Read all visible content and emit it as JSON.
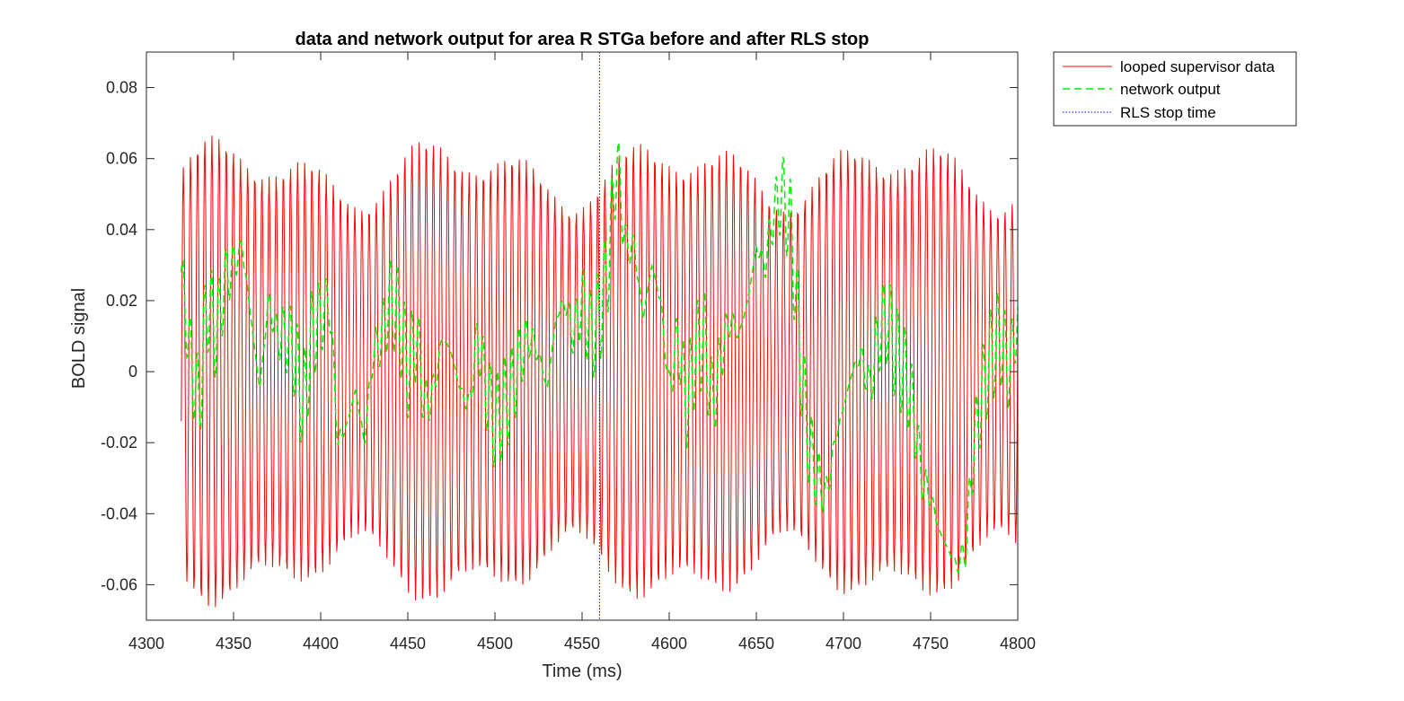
{
  "chart_data": {
    "type": "line",
    "title": "data and network output for area R STGa before and after RLS stop",
    "xlabel": "Time (ms)",
    "ylabel": "BOLD signal",
    "xlim": [
      4300,
      4800
    ],
    "ylim": [
      -0.07,
      0.09
    ],
    "xticks": [
      "4300",
      "4350",
      "4400",
      "4450",
      "4500",
      "4550",
      "4600",
      "4650",
      "4700",
      "4750",
      "4800"
    ],
    "yticks": [
      "-0.06",
      "-0.04",
      "-0.02",
      "0",
      "0.02",
      "0.04",
      "0.06",
      "0.08"
    ],
    "grid": false,
    "legend_position": "top-right outside",
    "series": [
      {
        "name": "looped supervisor data",
        "color": "#ff0000",
        "style": "solid",
        "x_start": 4320,
        "x_end": 4800,
        "samples": 1200,
        "model": "oscillation",
        "period": 4.1,
        "envelope_min": 0.045,
        "envelope_max": 0.068
      },
      {
        "name": "network output",
        "color": "#00ee00",
        "style": "dashed",
        "points": [
          [
            4320,
            0.028
          ],
          [
            4325,
            0.005
          ],
          [
            4330,
            -0.01
          ],
          [
            4335,
            0.02
          ],
          [
            4340,
            0.01
          ],
          [
            4345,
            0.025
          ],
          [
            4350,
            0.03
          ],
          [
            4355,
            0.035
          ],
          [
            4360,
            0.015
          ],
          [
            4365,
            -0.005
          ],
          [
            4370,
            0.02
          ],
          [
            4375,
            0.01
          ],
          [
            4380,
            0.01
          ],
          [
            4385,
            0.005
          ],
          [
            4390,
            -0.01
          ],
          [
            4395,
            0.01
          ],
          [
            4400,
            0.015
          ],
          [
            4405,
            0.02
          ],
          [
            4410,
            -0.02
          ],
          [
            4415,
            -0.015
          ],
          [
            4420,
            -0.005
          ],
          [
            4425,
            -0.02
          ],
          [
            4430,
            0.005
          ],
          [
            4435,
            0.01
          ],
          [
            4440,
            0.02
          ],
          [
            4445,
            0.015
          ],
          [
            4450,
            0.0
          ],
          [
            4455,
            0.01
          ],
          [
            4460,
            -0.01
          ],
          [
            4465,
            -0.005
          ],
          [
            4470,
            0.01
          ],
          [
            4475,
            0.005
          ],
          [
            4480,
            -0.005
          ],
          [
            4485,
            -0.01
          ],
          [
            4490,
            0.01
          ],
          [
            4495,
            -0.005
          ],
          [
            4500,
            -0.015
          ],
          [
            4505,
            -0.01
          ],
          [
            4510,
            -0.005
          ],
          [
            4515,
            0.005
          ],
          [
            4520,
            0.01
          ],
          [
            4525,
            0.005
          ],
          [
            4530,
            -0.005
          ],
          [
            4535,
            0.015
          ],
          [
            4540,
            0.02
          ],
          [
            4545,
            0.01
          ],
          [
            4550,
            0.02
          ],
          [
            4555,
            0.01
          ],
          [
            4560,
            0.015
          ],
          [
            4565,
            0.03
          ],
          [
            4570,
            0.06
          ],
          [
            4575,
            0.035
          ],
          [
            4580,
            0.035
          ],
          [
            4585,
            0.015
          ],
          [
            4590,
            0.03
          ],
          [
            4595,
            0.02
          ],
          [
            4600,
            -0.005
          ],
          [
            4605,
            0.01
          ],
          [
            4610,
            -0.01
          ],
          [
            4615,
            0.005
          ],
          [
            4620,
            0.01
          ],
          [
            4625,
            -0.01
          ],
          [
            4630,
            0.005
          ],
          [
            4635,
            0.015
          ],
          [
            4640,
            0.01
          ],
          [
            4645,
            0.02
          ],
          [
            4650,
            0.035
          ],
          [
            4655,
            0.03
          ],
          [
            4660,
            0.045
          ],
          [
            4665,
            0.05
          ],
          [
            4670,
            0.04
          ],
          [
            4675,
            0.005
          ],
          [
            4680,
            -0.02
          ],
          [
            4685,
            -0.03
          ],
          [
            4690,
            -0.035
          ],
          [
            4695,
            -0.02
          ],
          [
            4700,
            -0.01
          ],
          [
            4705,
            0.0
          ],
          [
            4710,
            0.005
          ],
          [
            4715,
            -0.005
          ],
          [
            4720,
            0.01
          ],
          [
            4725,
            0.015
          ],
          [
            4730,
            0.005
          ],
          [
            4735,
            0.0
          ],
          [
            4740,
            -0.01
          ],
          [
            4745,
            -0.03
          ],
          [
            4750,
            -0.035
          ],
          [
            4755,
            -0.045
          ],
          [
            4760,
            -0.05
          ],
          [
            4765,
            -0.055
          ],
          [
            4770,
            -0.05
          ],
          [
            4775,
            -0.02
          ],
          [
            4780,
            -0.005
          ],
          [
            4785,
            0.005
          ],
          [
            4790,
            0.01
          ],
          [
            4795,
            0.0
          ],
          [
            4800,
            0.015
          ]
        ]
      },
      {
        "name": "RLS stop time",
        "color": "#0000ff",
        "style": "dotted",
        "x_value": 4560
      }
    ]
  }
}
